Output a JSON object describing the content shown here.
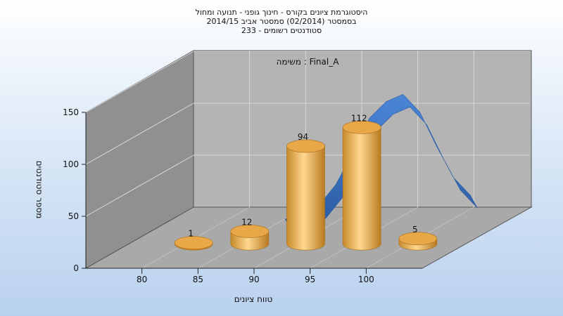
{
  "chart_data": {
    "type": "bar",
    "title_lines": [
      "היסטוגרמת ציונים בקורס - חינוך גופני - תנועה ומחול",
      "בסמסטר  (02/2014)  סמסטר אביב 2014/15",
      "סטודנטים רשומים - 233"
    ],
    "subtitle": "משימה : Final_A",
    "xlabel": "טווח ציונים",
    "ylabel": "מספר סטודנטים",
    "x_ticks": [
      "80",
      "85",
      "90",
      "95",
      "100"
    ],
    "y_ticks": [
      "0",
      "50",
      "100",
      "150"
    ],
    "ylim": [
      0,
      150
    ],
    "xlim": [
      75,
      105
    ],
    "bars": [
      {
        "x": 82.5,
        "value": 1,
        "label": "1"
      },
      {
        "x": 87.5,
        "value": 12,
        "label": "12"
      },
      {
        "x": 92.5,
        "value": 94,
        "label": "94"
      },
      {
        "x": 97.5,
        "value": 112,
        "label": "112"
      },
      {
        "x": 102.5,
        "value": 5,
        "label": "5"
      }
    ],
    "curve": {
      "name": "normal-distribution",
      "x": [
        87.5,
        89,
        90.5,
        92,
        93.5,
        95,
        96.5,
        98,
        99.5,
        101,
        102.5,
        104
      ],
      "y": [
        15,
        20,
        28,
        48,
        78,
        112,
        128,
        135,
        118,
        85,
        55,
        38
      ]
    },
    "grid": true,
    "colors": {
      "bar": "#f0b050",
      "bar_dark": "#c78a2a",
      "bar_light": "#ffd890",
      "curve": "#3d78c8",
      "curve_dark": "#2a5aa0",
      "back_wall": "#b4b4b4",
      "side_wall": "#8e8e8e",
      "floor": "#a8a8a8"
    }
  }
}
